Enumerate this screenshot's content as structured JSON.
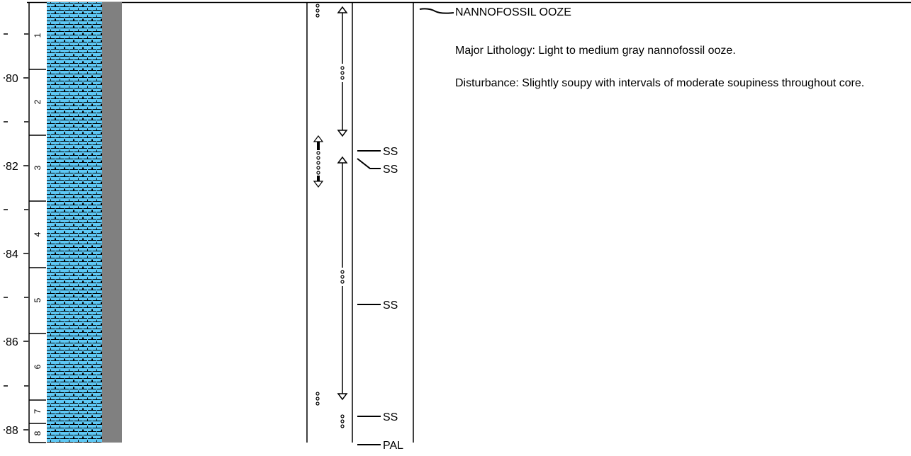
{
  "depth_labels": [
    "80",
    "82",
    "84",
    "86",
    "88"
  ],
  "section_numbers": [
    "1",
    "2",
    "3",
    "4",
    "5",
    "6",
    "7",
    "8"
  ],
  "sample_labels": [
    "SS",
    "SS",
    "SS",
    "SS",
    "PAL"
  ],
  "description": {
    "title": "NANNOFOSSIL OOZE",
    "major_lithology": "Major Lithology: Light to medium gray nannofossil ooze.",
    "disturbance": "Disturbance: Slightly soupy with intervals of moderate soupiness throughout core."
  },
  "colors": {
    "lithology_fill": "#5ec8f5",
    "gray_column": "#808080",
    "line": "#000000"
  }
}
